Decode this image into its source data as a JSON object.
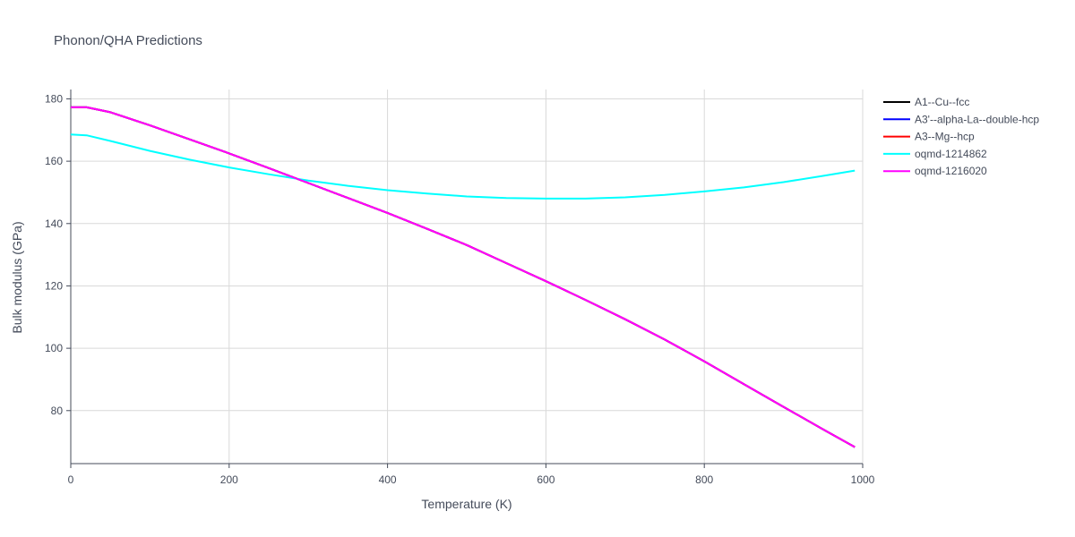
{
  "chart_data": {
    "type": "line",
    "title": "Phonon/QHA Predictions",
    "xlabel": "Temperature (K)",
    "ylabel": "Bulk modulus (GPa)",
    "xlim": [
      0,
      1000
    ],
    "ylim": [
      63,
      183
    ],
    "x_ticks": [
      0,
      200,
      400,
      600,
      800,
      1000
    ],
    "y_ticks": [
      80,
      100,
      120,
      140,
      160,
      180
    ],
    "grid": true,
    "legend_position": "top-right",
    "series": [
      {
        "name": "A1--Cu--fcc",
        "color": "#000000",
        "x": [
          0,
          20,
          50,
          100,
          150,
          200,
          250,
          300,
          350,
          400,
          450,
          500,
          550,
          600,
          650,
          700,
          750,
          800,
          850,
          900,
          950,
          990
        ],
        "y": [
          177.3,
          177.3,
          175.7,
          171.5,
          167.0,
          162.5,
          157.8,
          153.0,
          148.2,
          143.4,
          138.3,
          133.1,
          127.3,
          121.5,
          115.5,
          109.3,
          102.8,
          95.8,
          88.5,
          81.2,
          74.0,
          68.3
        ]
      },
      {
        "name": "A3'--alpha-La--double-hcp",
        "color": "#0000ff",
        "x": [
          0,
          20,
          50,
          100,
          150,
          200,
          250,
          300,
          350,
          400,
          450,
          500,
          550,
          600,
          650,
          700,
          750,
          800,
          850,
          900,
          950,
          990
        ],
        "y": [
          177.3,
          177.3,
          175.7,
          171.5,
          167.0,
          162.5,
          157.8,
          153.0,
          148.2,
          143.4,
          138.3,
          133.1,
          127.3,
          121.5,
          115.5,
          109.3,
          102.8,
          95.8,
          88.5,
          81.2,
          74.0,
          68.3
        ]
      },
      {
        "name": "A3--Mg--hcp",
        "color": "#ff0000",
        "x": [
          0,
          20,
          50,
          100,
          150,
          200,
          250,
          300,
          350,
          400,
          450,
          500,
          550,
          600,
          650,
          700,
          750,
          800,
          850,
          900,
          950,
          990
        ],
        "y": [
          177.3,
          177.3,
          175.7,
          171.5,
          167.0,
          162.5,
          157.8,
          153.0,
          148.2,
          143.4,
          138.3,
          133.1,
          127.3,
          121.5,
          115.5,
          109.3,
          102.8,
          95.8,
          88.5,
          81.2,
          74.0,
          68.3
        ]
      },
      {
        "name": "oqmd-1214862",
        "color": "#00ffff",
        "x": [
          0,
          20,
          50,
          100,
          150,
          200,
          250,
          300,
          350,
          400,
          450,
          500,
          550,
          600,
          650,
          700,
          750,
          800,
          850,
          900,
          950,
          990
        ],
        "y": [
          168.6,
          168.3,
          166.5,
          163.3,
          160.5,
          158.0,
          155.8,
          153.8,
          152.1,
          150.7,
          149.6,
          148.7,
          148.2,
          148.0,
          148.0,
          148.4,
          149.2,
          150.3,
          151.6,
          153.3,
          155.3,
          157.0
        ]
      },
      {
        "name": "oqmd-1216020",
        "color": "#ff00ff",
        "x": [
          0,
          20,
          50,
          100,
          150,
          200,
          250,
          300,
          350,
          400,
          450,
          500,
          550,
          600,
          650,
          700,
          750,
          800,
          850,
          900,
          950,
          990
        ],
        "y": [
          177.3,
          177.3,
          175.7,
          171.5,
          167.0,
          162.5,
          157.8,
          153.0,
          148.2,
          143.4,
          138.3,
          133.1,
          127.3,
          121.5,
          115.5,
          109.3,
          102.8,
          95.8,
          88.5,
          81.2,
          74.0,
          68.3
        ]
      }
    ]
  }
}
